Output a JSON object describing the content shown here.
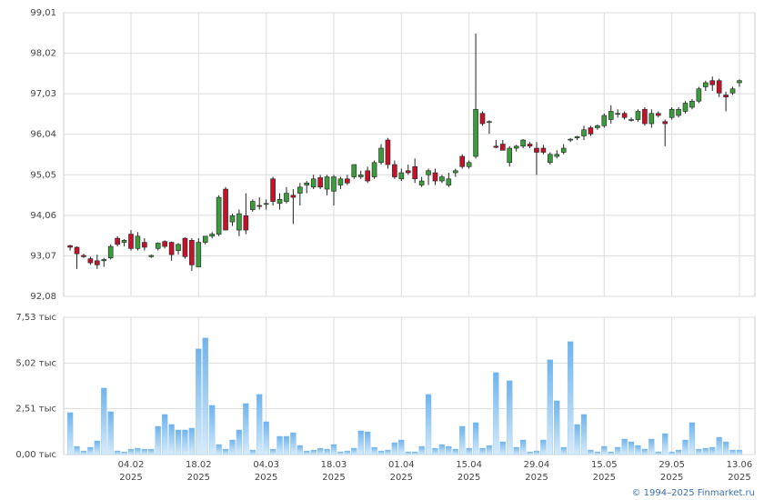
{
  "chart_data": [
    {
      "type": "candlestick",
      "ylim": [
        92.08,
        99.01
      ],
      "yticks": [
        {
          "value": 92.08,
          "label": "92,08"
        },
        {
          "value": 93.07,
          "label": "93,07"
        },
        {
          "value": 94.06,
          "label": "94,06"
        },
        {
          "value": 95.05,
          "label": "95,05"
        },
        {
          "value": 96.04,
          "label": "96,04"
        },
        {
          "value": 97.03,
          "label": "97,03"
        },
        {
          "value": 98.02,
          "label": "98,02"
        },
        {
          "value": 99.01,
          "label": "99,01"
        }
      ],
      "grid": true,
      "up_color": "#3c9b3c",
      "down_color": "#c3132b",
      "open": [
        93.32,
        93.28,
        93.08,
        93.0,
        92.95,
        92.95,
        93.02,
        93.5,
        93.4,
        93.6,
        93.25,
        93.4,
        93.05,
        93.25,
        93.42,
        93.4,
        93.2,
        93.5,
        93.45,
        92.8,
        93.4,
        93.55,
        93.6,
        94.7,
        93.9,
        93.7,
        94.05,
        94.2,
        94.3,
        94.35,
        94.95,
        94.35,
        94.4,
        94.55,
        94.6,
        94.8,
        94.75,
        94.98,
        94.7,
        94.65,
        94.8,
        94.95,
        95.0,
        95.0,
        95.15,
        95.0,
        95.35,
        95.9,
        95.3,
        94.95,
        95.15,
        95.25,
        94.8,
        95.05,
        95.1,
        94.9,
        94.8,
        95.1,
        95.5,
        95.25,
        95.5,
        96.55,
        96.35,
        95.75,
        95.8,
        95.35,
        95.7,
        95.75,
        95.8,
        95.7,
        95.7,
        95.35,
        95.5,
        95.6,
        95.9,
        95.95,
        96.0,
        96.2,
        96.2,
        96.25,
        96.4,
        96.55,
        96.55,
        96.4,
        96.4,
        96.65,
        96.3,
        96.55,
        96.35,
        96.45,
        96.5,
        96.6,
        96.7,
        96.85,
        97.2,
        97.35,
        97.35,
        97.0,
        97.05,
        97.3
      ],
      "high": [
        93.34,
        93.3,
        93.12,
        93.05,
        93.1,
        93.02,
        93.35,
        93.55,
        93.48,
        93.7,
        93.65,
        93.5,
        93.1,
        93.4,
        93.45,
        93.42,
        93.38,
        93.52,
        93.5,
        93.5,
        93.55,
        93.65,
        94.55,
        94.75,
        94.1,
        94.2,
        94.6,
        94.45,
        94.5,
        94.45,
        95.0,
        94.6,
        94.75,
        94.7,
        94.85,
        94.9,
        95.05,
        95.05,
        95.05,
        95.05,
        95.0,
        95.05,
        95.3,
        95.15,
        95.25,
        95.4,
        95.8,
        95.95,
        95.4,
        95.2,
        95.3,
        95.45,
        95.0,
        95.2,
        95.2,
        95.05,
        95.1,
        95.2,
        95.55,
        95.4,
        98.5,
        96.6,
        96.38,
        95.9,
        95.9,
        95.75,
        95.78,
        95.92,
        95.85,
        95.85,
        95.78,
        95.6,
        95.65,
        95.8,
        95.95,
        96.0,
        96.25,
        96.25,
        96.28,
        96.55,
        96.75,
        96.65,
        96.6,
        96.45,
        96.65,
        96.7,
        96.65,
        96.6,
        96.4,
        96.7,
        96.7,
        96.85,
        96.9,
        97.2,
        97.35,
        97.45,
        97.4,
        97.08,
        97.2,
        97.38
      ],
      "low": [
        93.2,
        92.75,
        93.02,
        92.85,
        92.75,
        92.8,
        92.98,
        93.3,
        93.3,
        93.2,
        93.2,
        93.2,
        93.02,
        93.2,
        93.25,
        92.95,
        93.1,
        93.0,
        92.7,
        92.8,
        93.35,
        93.5,
        93.55,
        93.7,
        93.8,
        93.55,
        93.6,
        94.15,
        94.2,
        94.2,
        94.3,
        94.2,
        94.35,
        93.85,
        94.3,
        94.6,
        94.7,
        94.7,
        94.55,
        94.3,
        94.7,
        94.8,
        94.95,
        94.95,
        94.85,
        94.95,
        95.3,
        95.2,
        94.95,
        94.9,
        95.05,
        94.85,
        94.75,
        94.8,
        94.8,
        94.85,
        94.75,
        95.0,
        95.2,
        95.2,
        95.45,
        96.25,
        96.05,
        95.7,
        95.65,
        95.25,
        95.62,
        95.7,
        95.7,
        95.05,
        95.55,
        95.3,
        95.45,
        95.55,
        95.85,
        95.9,
        95.9,
        96.0,
        96.15,
        96.2,
        96.3,
        96.45,
        96.4,
        96.35,
        96.35,
        96.25,
        96.2,
        96.45,
        95.75,
        96.4,
        96.45,
        96.55,
        96.65,
        96.8,
        97.1,
        97.1,
        96.95,
        96.6,
        97.0,
        97.2
      ],
      "close": [
        93.28,
        93.12,
        93.05,
        92.9,
        92.85,
        92.98,
        93.3,
        93.35,
        93.45,
        93.25,
        93.55,
        93.28,
        93.08,
        93.38,
        93.3,
        93.1,
        93.35,
        93.05,
        92.85,
        93.4,
        93.55,
        93.6,
        94.5,
        93.7,
        94.05,
        94.1,
        93.7,
        94.4,
        94.28,
        94.35,
        94.4,
        94.45,
        94.6,
        94.5,
        94.75,
        94.85,
        94.95,
        94.75,
        95.0,
        95.0,
        94.95,
        94.85,
        95.3,
        95.05,
        94.9,
        95.35,
        95.7,
        95.3,
        95.0,
        95.1,
        95.1,
        94.95,
        94.9,
        95.15,
        94.9,
        95.0,
        94.95,
        95.15,
        95.25,
        95.35,
        96.65,
        96.3,
        96.35,
        95.72,
        95.65,
        95.7,
        95.75,
        95.9,
        95.75,
        95.6,
        95.6,
        95.55,
        95.55,
        95.7,
        95.92,
        95.98,
        96.15,
        96.05,
        96.25,
        96.5,
        96.6,
        96.55,
        96.45,
        96.4,
        96.6,
        96.3,
        96.55,
        96.5,
        96.3,
        96.65,
        96.65,
        96.8,
        96.85,
        97.15,
        97.3,
        97.25,
        97.05,
        96.95,
        97.15,
        97.35
      ]
    },
    {
      "type": "bar",
      "ylim": [
        0,
        7.53
      ],
      "yticks": [
        {
          "value": 0,
          "label": "0,00 тыс"
        },
        {
          "value": 2.51,
          "label": "2,51 тыс"
        },
        {
          "value": 5.02,
          "label": "5,02 тыс"
        },
        {
          "value": 7.53,
          "label": "7,53 тыс"
        }
      ],
      "grid": true,
      "color": "#7fbcee",
      "categories": [
        null,
        null,
        null,
        null,
        null,
        null,
        null,
        null,
        null,
        "04.02",
        null,
        null,
        null,
        null,
        null,
        null,
        null,
        null,
        null,
        "18.02",
        null,
        null,
        null,
        null,
        null,
        null,
        null,
        null,
        null,
        "04.03",
        null,
        null,
        null,
        null,
        null,
        null,
        null,
        null,
        null,
        "18.03",
        null,
        null,
        null,
        null,
        null,
        null,
        null,
        null,
        null,
        "01.04",
        null,
        null,
        null,
        null,
        null,
        null,
        null,
        null,
        null,
        "15.04",
        null,
        null,
        null,
        null,
        null,
        null,
        null,
        null,
        null,
        "29.04",
        null,
        null,
        null,
        null,
        null,
        null,
        null,
        null,
        null,
        "15.05",
        null,
        null,
        null,
        null,
        null,
        null,
        null,
        null,
        null,
        "29.05",
        null,
        null,
        null,
        null,
        null,
        null,
        null,
        null,
        null,
        "13.06"
      ],
      "category_years": [
        null,
        null,
        null,
        null,
        null,
        null,
        null,
        null,
        null,
        "2025",
        null,
        null,
        null,
        null,
        null,
        null,
        null,
        null,
        null,
        "2025",
        null,
        null,
        null,
        null,
        null,
        null,
        null,
        null,
        null,
        "2025",
        null,
        null,
        null,
        null,
        null,
        null,
        null,
        null,
        null,
        "2025",
        null,
        null,
        null,
        null,
        null,
        null,
        null,
        null,
        null,
        "2025",
        null,
        null,
        null,
        null,
        null,
        null,
        null,
        null,
        null,
        "2025",
        null,
        null,
        null,
        null,
        null,
        null,
        null,
        null,
        null,
        "2025",
        null,
        null,
        null,
        null,
        null,
        null,
        null,
        null,
        null,
        "2025",
        null,
        null,
        null,
        null,
        null,
        null,
        null,
        null,
        null,
        "2025",
        null,
        null,
        null,
        null,
        null,
        null,
        null,
        null,
        null,
        "2025"
      ],
      "values": [
        2.3,
        0.45,
        0.2,
        0.4,
        0.75,
        3.65,
        2.35,
        0.2,
        0.15,
        0.3,
        0.35,
        0.3,
        0.3,
        1.55,
        2.2,
        1.65,
        1.35,
        1.35,
        1.45,
        5.8,
        6.4,
        2.7,
        0.55,
        0.3,
        0.8,
        1.35,
        2.8,
        0.25,
        3.3,
        1.8,
        0.3,
        1.0,
        1.0,
        1.2,
        0.5,
        0.2,
        0.25,
        0.35,
        0.3,
        0.55,
        0.15,
        0.2,
        0.35,
        1.3,
        1.25,
        0.4,
        0.2,
        0.25,
        0.65,
        0.8,
        0.15,
        0.15,
        0.45,
        3.3,
        0.35,
        0.55,
        0.45,
        0.3,
        1.55,
        0.35,
        1.75,
        0.35,
        0.5,
        4.5,
        0.7,
        4.05,
        0.4,
        0.8,
        0.15,
        0.2,
        0.8,
        5.2,
        2.95,
        0.4,
        6.2,
        1.65,
        2.2,
        0.25,
        0.15,
        0.45,
        0.15,
        0.4,
        0.85,
        0.7,
        0.5,
        0.3,
        0.85,
        0.15,
        1.15,
        0.15,
        0.25,
        0.8,
        1.75,
        0.3,
        0.35,
        0.4,
        0.95,
        0.7,
        0.25,
        0.25
      ]
    }
  ],
  "footer": "© 1994–2025 Finmarket.ru"
}
